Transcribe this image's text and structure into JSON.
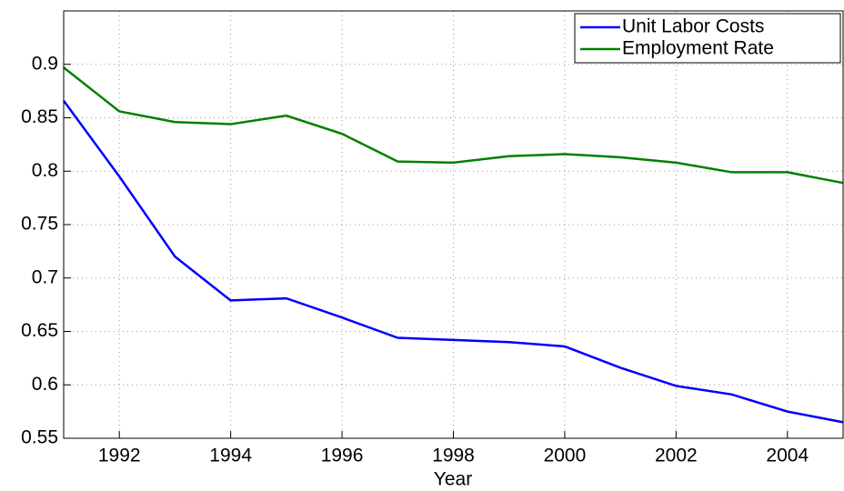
{
  "chart_data": {
    "type": "line",
    "xlabel": "Year",
    "x": [
      1991,
      1992,
      1993,
      1994,
      1995,
      1996,
      1997,
      1998,
      1999,
      2000,
      2001,
      2002,
      2003,
      2004,
      2005
    ],
    "series": [
      {
        "name": "Unit Labor Costs",
        "color": "#0000ff",
        "values": [
          0.866,
          0.795,
          0.72,
          0.679,
          0.681,
          0.663,
          0.644,
          0.642,
          0.64,
          0.636,
          0.616,
          0.599,
          0.591,
          0.575,
          0.565
        ]
      },
      {
        "name": "Employment Rate",
        "color": "#008000",
        "values": [
          0.897,
          0.856,
          0.846,
          0.844,
          0.852,
          0.835,
          0.809,
          0.808,
          0.814,
          0.816,
          0.813,
          0.808,
          0.799,
          0.799,
          0.789
        ]
      }
    ],
    "xlim": [
      1991,
      2005
    ],
    "ylim": [
      0.55,
      0.95
    ],
    "xticks": [
      1992,
      1994,
      1996,
      1998,
      2000,
      2002,
      2004
    ],
    "yticks": [
      0.55,
      0.6,
      0.65,
      0.7,
      0.75,
      0.8,
      0.85,
      0.9
    ],
    "grid": true,
    "legend": "upper right"
  }
}
